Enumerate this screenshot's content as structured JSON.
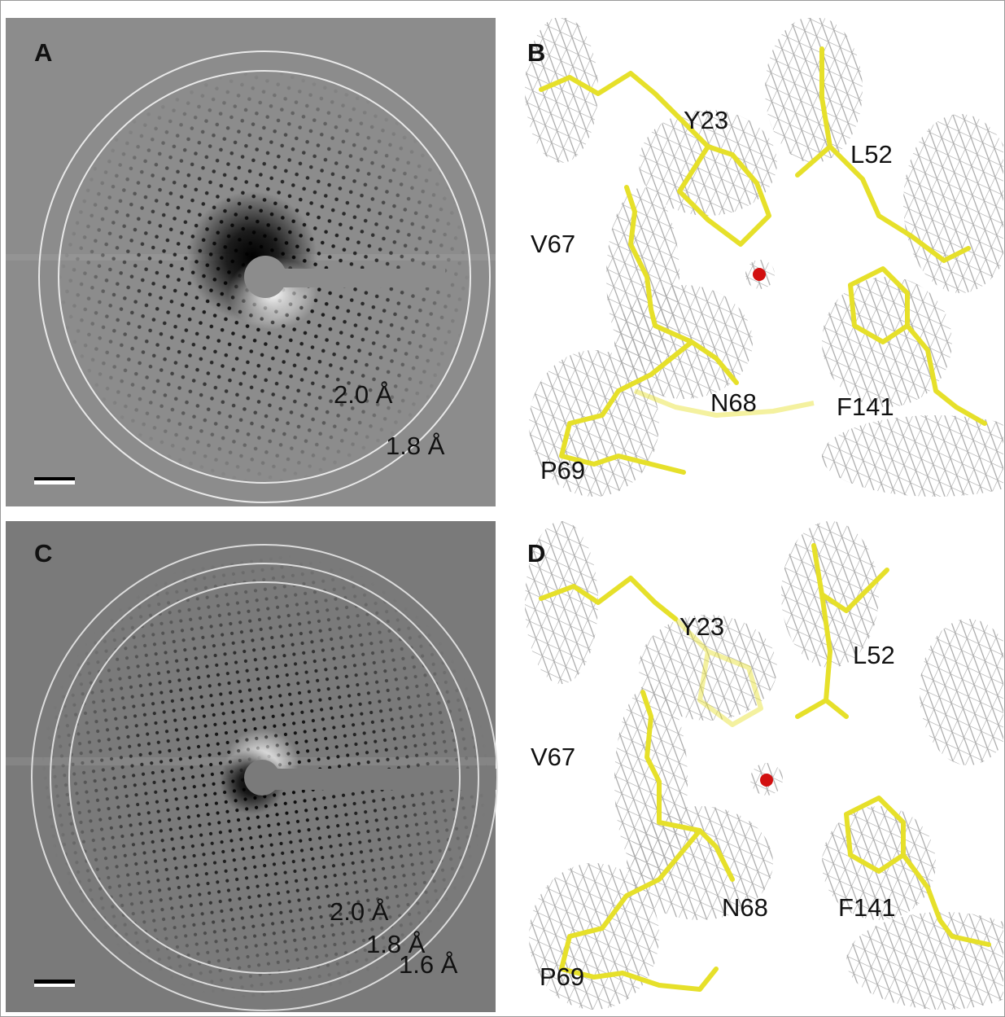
{
  "panels": [
    {
      "label": "A",
      "annotations": [
        "2.0 Å",
        "1.8 Å"
      ]
    },
    {
      "label": "B",
      "annotations": [
        "Y23",
        "L52",
        "V67",
        "N68",
        "F141",
        "P69"
      ]
    },
    {
      "label": "C",
      "annotations": [
        "2.0 Å",
        "1.8 Å",
        "1.6 Å"
      ]
    },
    {
      "label": "D",
      "annotations": [
        "Y23",
        "L52",
        "V67",
        "N68",
        "F141",
        "P69"
      ]
    }
  ]
}
